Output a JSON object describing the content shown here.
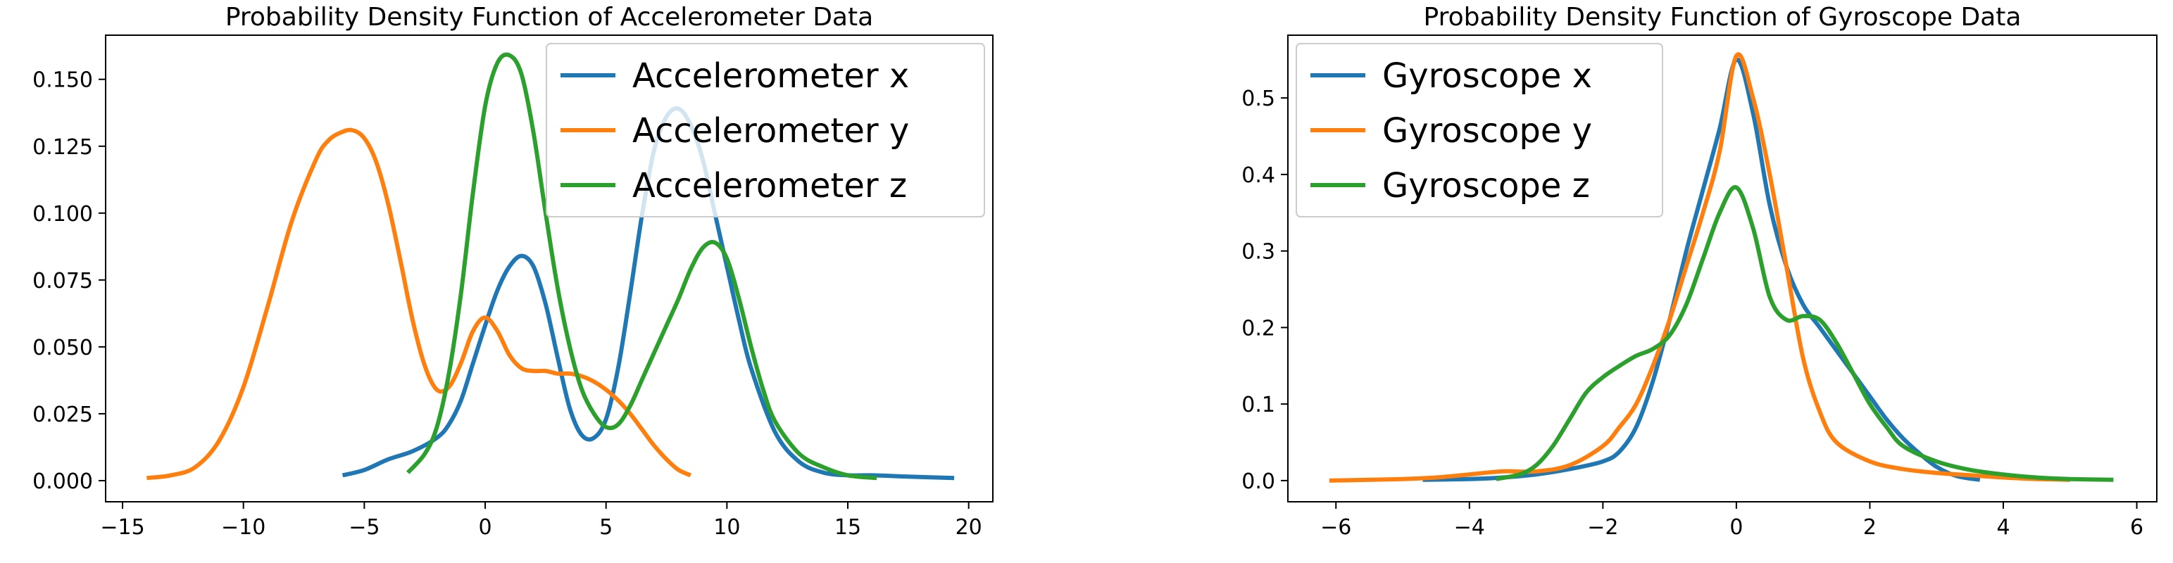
{
  "chart_data": [
    {
      "type": "line",
      "title": "Probability Density Function of Accelerometer Data",
      "xlabel": "",
      "ylabel": "",
      "xlim": [
        -15.7,
        21.0
      ],
      "ylim": [
        -0.0079,
        0.1665
      ],
      "xticks": [
        -15,
        -10,
        -5,
        0,
        5,
        10,
        15,
        20
      ],
      "xtick_labels": [
        "−15",
        "−10",
        "−5",
        "0",
        "5",
        "10",
        "15",
        "20"
      ],
      "yticks": [
        0.0,
        0.025,
        0.05,
        0.075,
        0.1,
        0.125,
        0.15
      ],
      "ytick_labels": [
        "0.000",
        "0.025",
        "0.050",
        "0.075",
        "0.100",
        "0.125",
        "0.150"
      ],
      "legend_position": "upper right",
      "grid": false,
      "series": [
        {
          "name": "Accelerometer x",
          "color": "#1f77b4",
          "x": [
            -5.9,
            -5.0,
            -4.0,
            -3.0,
            -2.0,
            -1.5,
            -1.0,
            -0.5,
            0.0,
            0.5,
            1.0,
            1.5,
            2.0,
            2.5,
            3.0,
            3.5,
            4.0,
            4.5,
            5.0,
            5.5,
            6.0,
            6.5,
            7.0,
            7.5,
            8.0,
            8.5,
            9.0,
            9.5,
            10.0,
            10.5,
            11.0,
            12.0,
            13.0,
            14.0,
            15.0,
            16.0,
            17.5,
            19.4
          ],
          "y": [
            0.002,
            0.004,
            0.008,
            0.011,
            0.016,
            0.021,
            0.03,
            0.044,
            0.058,
            0.071,
            0.08,
            0.084,
            0.08,
            0.066,
            0.046,
            0.027,
            0.017,
            0.016,
            0.023,
            0.042,
            0.07,
            0.1,
            0.124,
            0.136,
            0.139,
            0.133,
            0.12,
            0.1,
            0.08,
            0.06,
            0.042,
            0.018,
            0.007,
            0.003,
            0.002,
            0.002,
            0.0015,
            0.001
          ]
        },
        {
          "name": "Accelerometer y",
          "color": "#ff7f0e",
          "x": [
            -14.0,
            -13.0,
            -12.0,
            -11.0,
            -10.0,
            -9.0,
            -8.0,
            -7.0,
            -6.5,
            -6.0,
            -5.5,
            -5.0,
            -4.5,
            -4.0,
            -3.5,
            -3.0,
            -2.5,
            -2.0,
            -1.5,
            -1.0,
            -0.5,
            0.0,
            0.5,
            1.0,
            1.5,
            2.0,
            2.5,
            3.0,
            3.5,
            4.0,
            4.5,
            5.0,
            5.5,
            6.0,
            6.5,
            7.0,
            7.5,
            8.0,
            8.5
          ],
          "y": [
            0.001,
            0.002,
            0.005,
            0.015,
            0.035,
            0.065,
            0.097,
            0.12,
            0.127,
            0.13,
            0.131,
            0.128,
            0.119,
            0.103,
            0.082,
            0.06,
            0.043,
            0.034,
            0.035,
            0.044,
            0.056,
            0.061,
            0.056,
            0.047,
            0.042,
            0.041,
            0.041,
            0.04,
            0.04,
            0.039,
            0.037,
            0.034,
            0.03,
            0.025,
            0.019,
            0.013,
            0.008,
            0.004,
            0.002
          ]
        },
        {
          "name": "Accelerometer z",
          "color": "#2ca02c",
          "x": [
            -3.2,
            -2.5,
            -2.0,
            -1.5,
            -1.0,
            -0.5,
            0.0,
            0.5,
            1.0,
            1.5,
            2.0,
            2.5,
            3.0,
            3.5,
            4.0,
            4.5,
            5.0,
            5.5,
            6.0,
            6.5,
            7.0,
            7.5,
            8.0,
            8.5,
            9.0,
            9.5,
            10.0,
            10.5,
            11.0,
            11.5,
            12.0,
            13.0,
            14.0,
            15.0,
            16.2
          ],
          "y": [
            0.003,
            0.01,
            0.02,
            0.04,
            0.07,
            0.108,
            0.14,
            0.156,
            0.159,
            0.152,
            0.13,
            0.1,
            0.072,
            0.05,
            0.034,
            0.025,
            0.02,
            0.021,
            0.028,
            0.038,
            0.048,
            0.058,
            0.068,
            0.079,
            0.087,
            0.089,
            0.083,
            0.068,
            0.05,
            0.034,
            0.022,
            0.01,
            0.005,
            0.002,
            0.001
          ]
        }
      ]
    },
    {
      "type": "line",
      "title": "Probability Density Function of Gyroscope Data",
      "xlabel": "",
      "ylabel": "",
      "xlim": [
        -6.72,
        6.3
      ],
      "ylim": [
        -0.0277,
        0.582
      ],
      "xticks": [
        -6,
        -4,
        -2,
        0,
        2,
        4,
        6
      ],
      "xtick_labels": [
        "−6",
        "−4",
        "−2",
        "0",
        "2",
        "4",
        "6"
      ],
      "yticks": [
        0.0,
        0.1,
        0.2,
        0.3,
        0.4,
        0.5
      ],
      "ytick_labels": [
        "0.0",
        "0.1",
        "0.2",
        "0.3",
        "0.4",
        "0.5"
      ],
      "legend_position": "upper left",
      "grid": false,
      "series": [
        {
          "name": "Gyroscope x",
          "color": "#1f77b4",
          "x": [
            -4.7,
            -4.0,
            -3.5,
            -3.0,
            -2.5,
            -2.0,
            -1.75,
            -1.5,
            -1.25,
            -1.0,
            -0.75,
            -0.5,
            -0.25,
            0.0,
            0.25,
            0.5,
            0.75,
            1.0,
            1.25,
            1.5,
            1.75,
            2.0,
            2.25,
            2.5,
            2.75,
            3.0,
            3.3,
            3.65
          ],
          "y": [
            0.001,
            0.002,
            0.004,
            0.008,
            0.015,
            0.025,
            0.038,
            0.07,
            0.13,
            0.21,
            0.3,
            0.38,
            0.46,
            0.55,
            0.48,
            0.36,
            0.28,
            0.23,
            0.2,
            0.17,
            0.14,
            0.11,
            0.08,
            0.055,
            0.035,
            0.018,
            0.006,
            0.001
          ]
        },
        {
          "name": "Gyroscope y",
          "color": "#ff7f0e",
          "x": [
            -6.1,
            -5.5,
            -5.0,
            -4.5,
            -4.0,
            -3.5,
            -3.0,
            -2.5,
            -2.0,
            -1.75,
            -1.5,
            -1.25,
            -1.0,
            -0.75,
            -0.5,
            -0.25,
            0.0,
            0.25,
            0.5,
            0.75,
            1.0,
            1.25,
            1.5,
            2.0,
            2.5,
            3.0,
            3.5,
            4.0,
            4.5,
            5.0
          ],
          "y": [
            0.0,
            0.001,
            0.002,
            0.004,
            0.008,
            0.012,
            0.012,
            0.02,
            0.045,
            0.07,
            0.1,
            0.15,
            0.21,
            0.28,
            0.35,
            0.43,
            0.555,
            0.5,
            0.4,
            0.28,
            0.16,
            0.09,
            0.05,
            0.025,
            0.015,
            0.01,
            0.007,
            0.004,
            0.002,
            0.001
          ]
        },
        {
          "name": "Gyroscope z",
          "color": "#2ca02c",
          "x": [
            -3.6,
            -3.25,
            -3.0,
            -2.75,
            -2.5,
            -2.25,
            -2.0,
            -1.75,
            -1.5,
            -1.25,
            -1.0,
            -0.75,
            -0.5,
            -0.25,
            0.0,
            0.25,
            0.5,
            0.75,
            1.0,
            1.25,
            1.5,
            1.75,
            2.0,
            2.25,
            2.5,
            3.0,
            3.5,
            4.0,
            4.5,
            5.0,
            5.65
          ],
          "y": [
            0.002,
            0.008,
            0.02,
            0.045,
            0.08,
            0.115,
            0.135,
            0.15,
            0.163,
            0.172,
            0.19,
            0.23,
            0.29,
            0.35,
            0.383,
            0.33,
            0.24,
            0.21,
            0.215,
            0.21,
            0.18,
            0.14,
            0.1,
            0.07,
            0.045,
            0.025,
            0.014,
            0.008,
            0.004,
            0.002,
            0.001
          ]
        }
      ]
    }
  ]
}
